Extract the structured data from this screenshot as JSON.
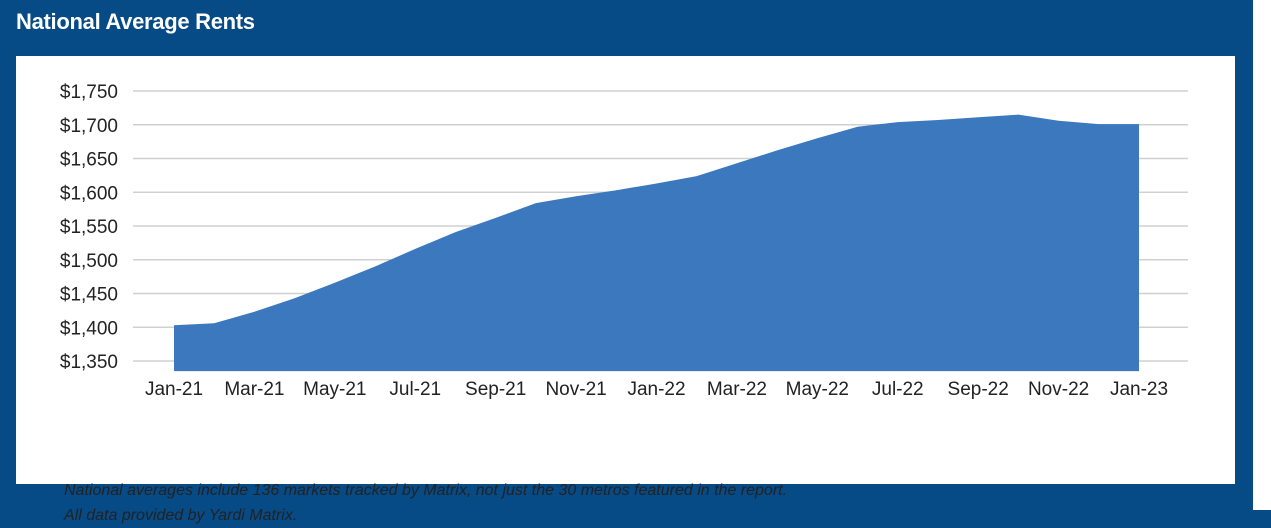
{
  "header": {
    "title": "National Average Rents"
  },
  "chart_data": {
    "type": "area",
    "title": "National Average Rents",
    "xlabel": "",
    "ylabel": "",
    "x": [
      "Jan-21",
      "Feb-21",
      "Mar-21",
      "Apr-21",
      "May-21",
      "Jun-21",
      "Jul-21",
      "Aug-21",
      "Sep-21",
      "Oct-21",
      "Nov-21",
      "Dec-21",
      "Jan-22",
      "Feb-22",
      "Mar-22",
      "Apr-22",
      "May-22",
      "Jun-22",
      "Jul-22",
      "Aug-22",
      "Sep-22",
      "Oct-22",
      "Nov-22",
      "Dec-22",
      "Jan-23"
    ],
    "tick_labels": [
      "Jan-21",
      "Mar-21",
      "May-21",
      "Jul-21",
      "Sep-21",
      "Nov-21",
      "Jan-22",
      "Mar-22",
      "May-22",
      "Jul-22",
      "Sep-22",
      "Nov-22",
      "Jan-23"
    ],
    "y_tick_labels": [
      "$1,350",
      "$1,400",
      "$1,450",
      "$1,500",
      "$1,550",
      "$1,600",
      "$1,650",
      "$1,700",
      "$1,750"
    ],
    "y_ticks": [
      1350,
      1400,
      1450,
      1500,
      1550,
      1600,
      1650,
      1700,
      1750
    ],
    "series": [
      {
        "values": [
          1403,
          1406,
          1423,
          1443,
          1466,
          1490,
          1516,
          1541,
          1562,
          1584,
          1594,
          1603,
          1613,
          1624,
          1643,
          1662,
          1680,
          1697,
          1704,
          1707,
          1711,
          1715,
          1706,
          1701,
          1701
        ]
      }
    ],
    "ylim": [
      1335,
      1750
    ],
    "grid": true,
    "colors": {
      "fill": "#3b78bd",
      "grid": "#d0d0d0"
    }
  },
  "notes": [
    "National averages include 136 markets tracked by Matrix, not just the 30 metros featured in the report.",
    "All data provided by Yardi Matrix."
  ]
}
